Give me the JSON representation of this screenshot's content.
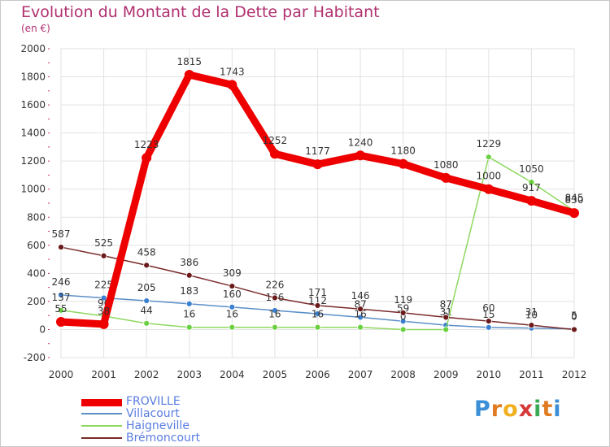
{
  "title": "Evolution du Montant de la Dette par Habitant",
  "unit": "(en €)",
  "logo": {
    "text": [
      "P",
      "r",
      "o",
      "x",
      "i",
      "t",
      "i"
    ],
    "colors": [
      "#3a8fd8",
      "#e07b22",
      "#f0b020",
      "#d63a3a",
      "#3aa855",
      "#e07b22",
      "#3a8fd8"
    ]
  },
  "chart_data": {
    "type": "line",
    "x": [
      "2000",
      "2001",
      "2002",
      "2003",
      "2004",
      "2005",
      "2006",
      "2007",
      "2008",
      "2009",
      "2010",
      "2011",
      "2012"
    ],
    "ylim": [
      -200,
      2000
    ],
    "yticks": [
      "-200",
      "0",
      "200",
      "400",
      "600",
      "800",
      "1000",
      "1200",
      "1400",
      "1600",
      "1800",
      "2000"
    ],
    "grid": true,
    "legend_position": "bottom-left",
    "series": [
      {
        "name": "Villacourt",
        "color": "#5a8fc8",
        "dot": "#3a7fd0",
        "values": [
          246,
          225,
          205,
          183,
          160,
          136,
          112,
          87,
          59,
          31,
          15,
          10,
          5
        ],
        "labels": [
          "246",
          "225",
          "205",
          "183",
          "160",
          "136",
          "112",
          "87",
          "59",
          "31",
          "15",
          "10",
          "5"
        ]
      },
      {
        "name": "Haigneville",
        "color": "#8fd860",
        "dot": "#6ad040",
        "values": [
          137,
          96,
          44,
          16,
          16,
          16,
          16,
          16,
          0,
          0,
          1229,
          1050,
          845
        ],
        "labels": [
          "137",
          "96",
          "44",
          "16",
          "16",
          "16",
          "16",
          "16",
          "0",
          "0",
          "1229",
          "1050",
          "845"
        ]
      },
      {
        "name": "Brémoncourt",
        "color": "#7a2a2a",
        "dot": "#6a1a1a",
        "values": [
          587,
          525,
          458,
          386,
          309,
          226,
          171,
          146,
          119,
          87,
          60,
          31,
          0
        ],
        "labels": [
          "587",
          "525",
          "458",
          "386",
          "309",
          "226",
          "171",
          "146",
          "119",
          "87",
          "60",
          "31",
          "0"
        ]
      },
      {
        "name": "FROVILLE",
        "color": "#ee0000",
        "dot": "#ee0000",
        "values": [
          55,
          38,
          1223,
          1815,
          1743,
          1252,
          1177,
          1240,
          1180,
          1080,
          1000,
          917,
          830
        ],
        "labels": [
          "55",
          "38",
          "1223",
          "1815",
          "1743",
          "1252",
          "1177",
          "1240",
          "1180",
          "1080",
          "1000",
          "917",
          "830"
        ]
      }
    ]
  }
}
